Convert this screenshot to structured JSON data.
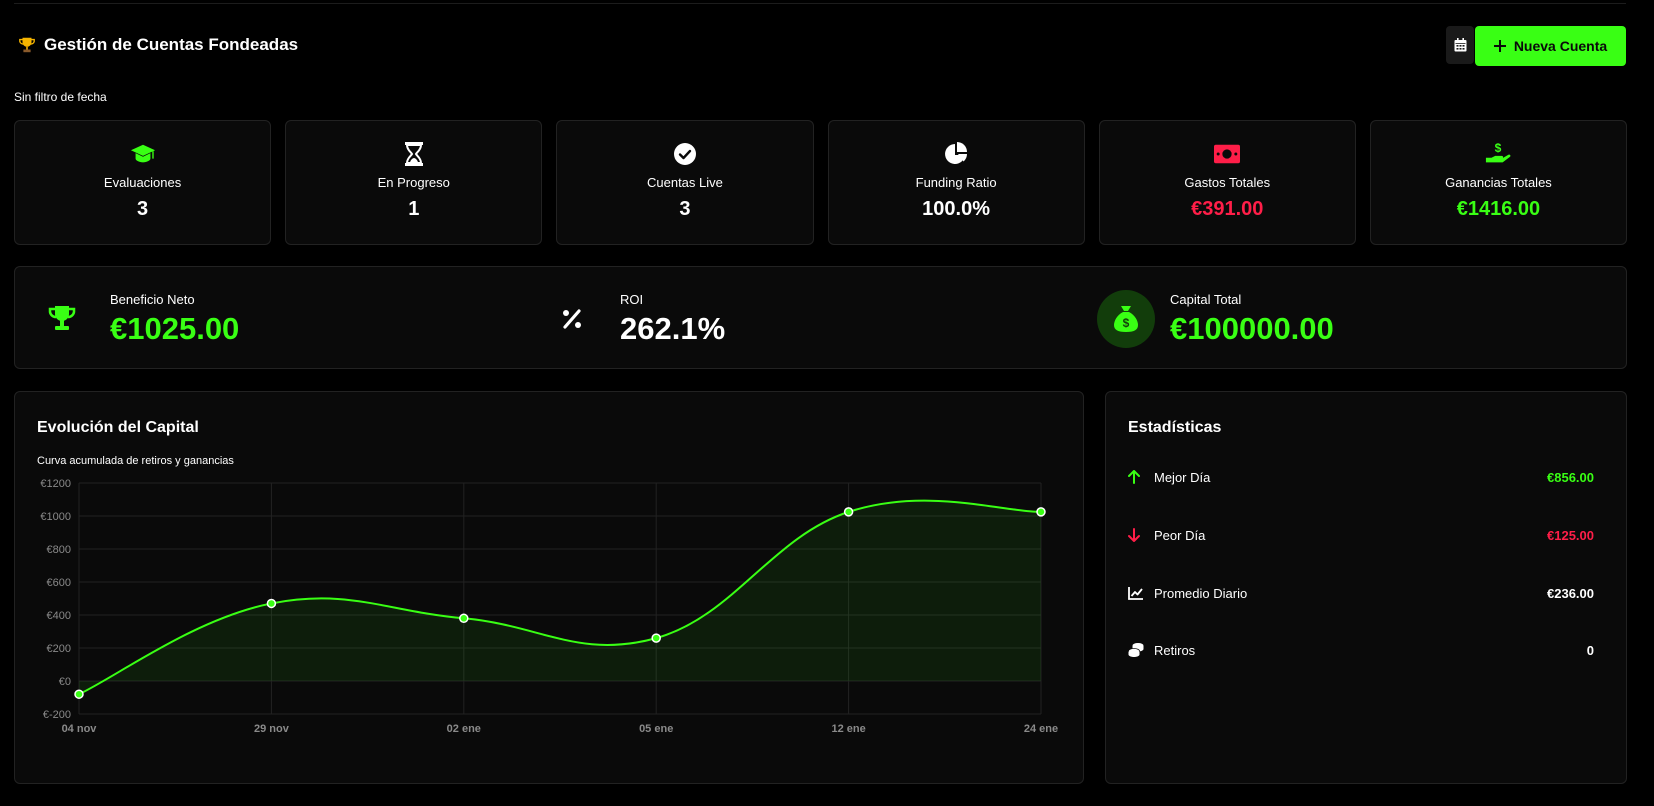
{
  "header": {
    "title": "Gestión de Cuentas Fondeadas",
    "new_account_label": "Nueva Cuenta",
    "filter_text": "Sin filtro de fecha"
  },
  "stats": [
    {
      "label": "Evaluaciones",
      "value": "3",
      "icon": "graduation-cap-icon"
    },
    {
      "label": "En Progreso",
      "value": "1",
      "icon": "hourglass-icon"
    },
    {
      "label": "Cuentas Live",
      "value": "3",
      "icon": "check-circle-icon"
    },
    {
      "label": "Funding Ratio",
      "value": "100.0%",
      "icon": "pie-chart-icon"
    },
    {
      "label": "Gastos Totales",
      "value": "€391.00",
      "icon": "money-bill-icon"
    },
    {
      "label": "Ganancias Totales",
      "value": "€1416.00",
      "icon": "hand-dollar-icon"
    }
  ],
  "summary": {
    "net_profit": {
      "label": "Beneficio Neto",
      "value": "€1025.00"
    },
    "roi": {
      "label": "ROI",
      "value": "262.1%"
    },
    "capital": {
      "label": "Capital Total",
      "value": "€100000.00"
    }
  },
  "chart": {
    "title": "Evolución del Capital",
    "subtitle": "Curva acumulada de retiros y ganancias"
  },
  "chart_data": {
    "type": "line",
    "x": [
      "04 nov",
      "29 nov",
      "02 ene",
      "05 ene",
      "12 ene",
      "24 ene"
    ],
    "series": [
      {
        "values": [
          -80,
          470,
          380,
          260,
          1025,
          1025
        ]
      }
    ],
    "ylim": [
      -200,
      1200
    ],
    "yticks": [
      -200,
      0,
      200,
      400,
      600,
      800,
      1000,
      1200
    ],
    "ytick_labels": [
      "€-200",
      "€0",
      "€200",
      "€400",
      "€600",
      "€800",
      "€1000",
      "€1200"
    ],
    "grid": true,
    "fill": true,
    "line_color": "#39ff14"
  },
  "statistics": {
    "title": "Estadísticas",
    "items": [
      {
        "label": "Mejor Día",
        "value": "€856.00",
        "icon": "arrow-up-icon",
        "color": "#39ff14"
      },
      {
        "label": "Peor Día",
        "value": "€125.00",
        "icon": "arrow-down-icon",
        "color": "#ff1e48"
      },
      {
        "label": "Promedio Diario",
        "value": "€236.00",
        "icon": "line-chart-icon",
        "color": "#ffffff"
      },
      {
        "label": "Retiros",
        "value": "0",
        "icon": "coins-icon",
        "color": "#ffffff"
      }
    ]
  },
  "colors": {
    "accent": "#39ff14",
    "danger": "#ff1e48",
    "background": "#000000",
    "card": "#0a0a0a"
  }
}
